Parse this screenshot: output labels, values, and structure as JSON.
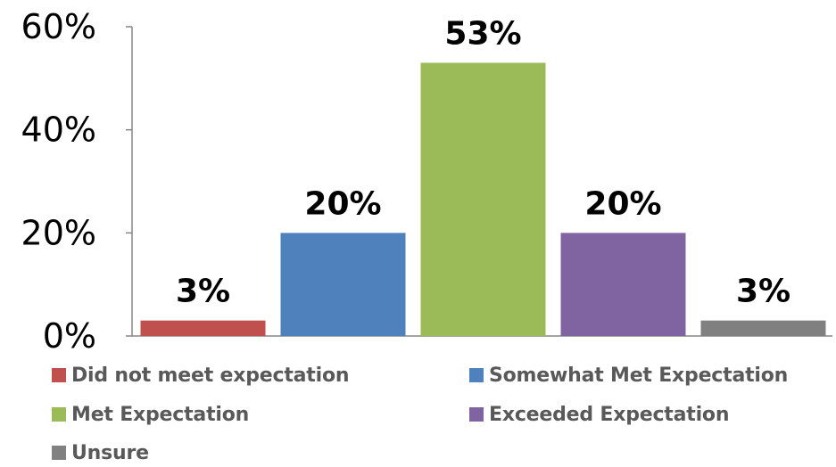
{
  "chart_data": {
    "type": "bar",
    "categories": [
      "Did not meet expectation",
      "Somewhat Met Expectation",
      "Met Expectation",
      "Exceeded Expectation",
      "Unsure"
    ],
    "values": [
      3,
      20,
      53,
      20,
      3
    ],
    "data_labels": [
      "3%",
      "20%",
      "53%",
      "20%",
      "3%"
    ],
    "colors": [
      "#c0504d",
      "#4f81bd",
      "#9bbb59",
      "#8064a2",
      "#808080"
    ],
    "y_ticks": [
      {
        "value": 0,
        "label": "0%"
      },
      {
        "value": 20,
        "label": "20%"
      },
      {
        "value": 40,
        "label": "40%"
      },
      {
        "value": 60,
        "label": "60%"
      }
    ],
    "ylim": [
      0,
      60
    ],
    "grid": false,
    "legend_position": "bottom",
    "title": "",
    "xlabel": "",
    "ylabel": ""
  },
  "legend": {
    "items": [
      {
        "label": "Did not meet expectation",
        "color": "#c0504d"
      },
      {
        "label": "Somewhat Met Expectation",
        "color": "#4f81bd"
      },
      {
        "label": "Met Expectation",
        "color": "#9bbb59"
      },
      {
        "label": "Exceeded Expectation",
        "color": "#8064a2"
      },
      {
        "label": "Unsure",
        "color": "#808080"
      }
    ]
  }
}
